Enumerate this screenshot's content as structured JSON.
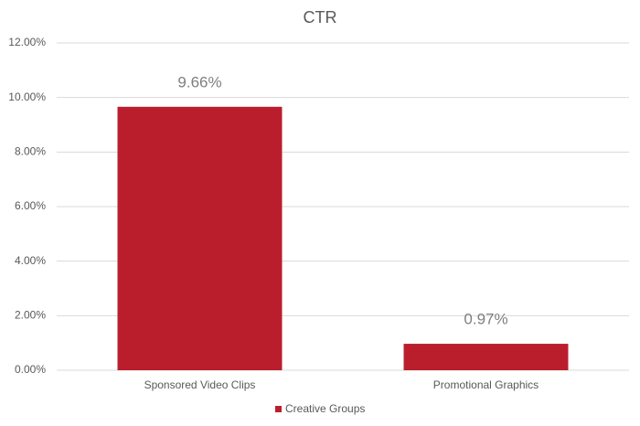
{
  "chart_data": {
    "type": "bar",
    "title": "CTR",
    "categories": [
      "Sponsored Video Clips",
      "Promotional Graphics"
    ],
    "series": [
      {
        "name": "Creative Groups",
        "color": "#ba1e2d",
        "values": [
          9.66,
          0.97
        ],
        "value_labels": [
          "9.66%",
          "0.97%"
        ]
      }
    ],
    "ylim": [
      0,
      12
    ],
    "yticks": [
      {
        "value": 0,
        "label": "0.00%"
      },
      {
        "value": 2,
        "label": "2.00%"
      },
      {
        "value": 4,
        "label": "4.00%"
      },
      {
        "value": 6,
        "label": "6.00%"
      },
      {
        "value": 8,
        "label": "8.00%"
      },
      {
        "value": 10,
        "label": "10.00%"
      },
      {
        "value": 12,
        "label": "12.00%"
      }
    ],
    "grid": true,
    "legend": "bottom"
  }
}
